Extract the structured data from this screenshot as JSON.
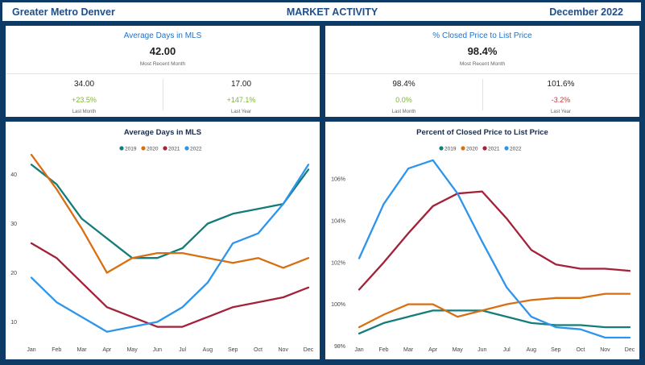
{
  "header": {
    "region": "Greater Metro Denver",
    "section": "MARKET ACTIVITY",
    "period": "December 2022"
  },
  "kpi_dom": {
    "title": "Average Days in MLS",
    "main_value": "42.00",
    "main_label": "Most Recent Month",
    "last_month": {
      "value": "34.00",
      "change": "+23.5%",
      "label": "Last Month"
    },
    "last_year": {
      "value": "17.00",
      "change": "+147.1%",
      "label": "Last Year"
    }
  },
  "kpi_price": {
    "title": "% Closed Price to List Price",
    "main_value": "98.4%",
    "main_label": "Most Recent Month",
    "last_month": {
      "value": "98.4%",
      "change": "0.0%",
      "label": "Last Month"
    },
    "last_year": {
      "value": "101.6%",
      "change": "-3.2%",
      "label": "Last Year"
    }
  },
  "colors": {
    "2019": "#147d7b",
    "2020": "#d86f10",
    "2021": "#a4213a",
    "2022": "#2e95ec",
    "positive": "#7cb82f",
    "negative": "#d13438"
  },
  "chart_data": [
    {
      "type": "line",
      "title": "Average Days in MLS",
      "categories": [
        "Jan",
        "Feb",
        "Mar",
        "Apr",
        "May",
        "Jun",
        "Jul",
        "Aug",
        "Sep",
        "Oct",
        "Nov",
        "Dec"
      ],
      "ylim": [
        5,
        45
      ],
      "yticks": [
        10,
        20,
        30,
        40
      ],
      "ytick_labels": [
        "10",
        "20",
        "30",
        "40"
      ],
      "legend_position": "top-center",
      "grid": false,
      "series": [
        {
          "name": "2019",
          "color": "#147d7b",
          "values": [
            42,
            38,
            31,
            27,
            23,
            23,
            25,
            30,
            32,
            33,
            34,
            41
          ]
        },
        {
          "name": "2020",
          "color": "#d86f10",
          "values": [
            44,
            37,
            29,
            20,
            23,
            24,
            24,
            23,
            22,
            23,
            21,
            23
          ]
        },
        {
          "name": "2021",
          "color": "#a4213a",
          "values": [
            26,
            23,
            18,
            13,
            11,
            9,
            9,
            11,
            13,
            14,
            15,
            17
          ]
        },
        {
          "name": "2022",
          "color": "#2e95ec",
          "values": [
            19,
            14,
            11,
            8,
            9,
            10,
            13,
            18,
            26,
            28,
            34,
            42
          ]
        }
      ]
    },
    {
      "type": "line",
      "title": "Percent of Closed Price to List Price",
      "categories": [
        "Jan",
        "Feb",
        "Mar",
        "Apr",
        "May",
        "Jun",
        "Jul",
        "Aug",
        "Sep",
        "Oct",
        "Nov",
        "Dec"
      ],
      "ylim": [
        97.9,
        107.2
      ],
      "yticks": [
        98,
        100,
        102,
        104,
        106
      ],
      "ytick_labels": [
        "98%",
        "100%",
        "102%",
        "104%",
        "106%"
      ],
      "legend_position": "top-center",
      "grid": false,
      "series": [
        {
          "name": "2019",
          "color": "#147d7b",
          "values": [
            98.6,
            99.1,
            99.4,
            99.7,
            99.7,
            99.7,
            99.4,
            99.1,
            99.0,
            99.0,
            98.9,
            98.9
          ]
        },
        {
          "name": "2020",
          "color": "#d86f10",
          "values": [
            98.9,
            99.5,
            100.0,
            100.0,
            99.4,
            99.7,
            100.0,
            100.2,
            100.3,
            100.3,
            100.5,
            100.5
          ]
        },
        {
          "name": "2021",
          "color": "#a4213a",
          "values": [
            100.7,
            102.0,
            103.4,
            104.7,
            105.3,
            105.4,
            104.1,
            102.6,
            101.9,
            101.7,
            101.7,
            101.6
          ]
        },
        {
          "name": "2022",
          "color": "#2e95ec",
          "values": [
            102.2,
            104.8,
            106.5,
            106.9,
            105.3,
            103.0,
            100.8,
            99.4,
            98.9,
            98.8,
            98.4,
            98.4
          ]
        }
      ]
    }
  ]
}
